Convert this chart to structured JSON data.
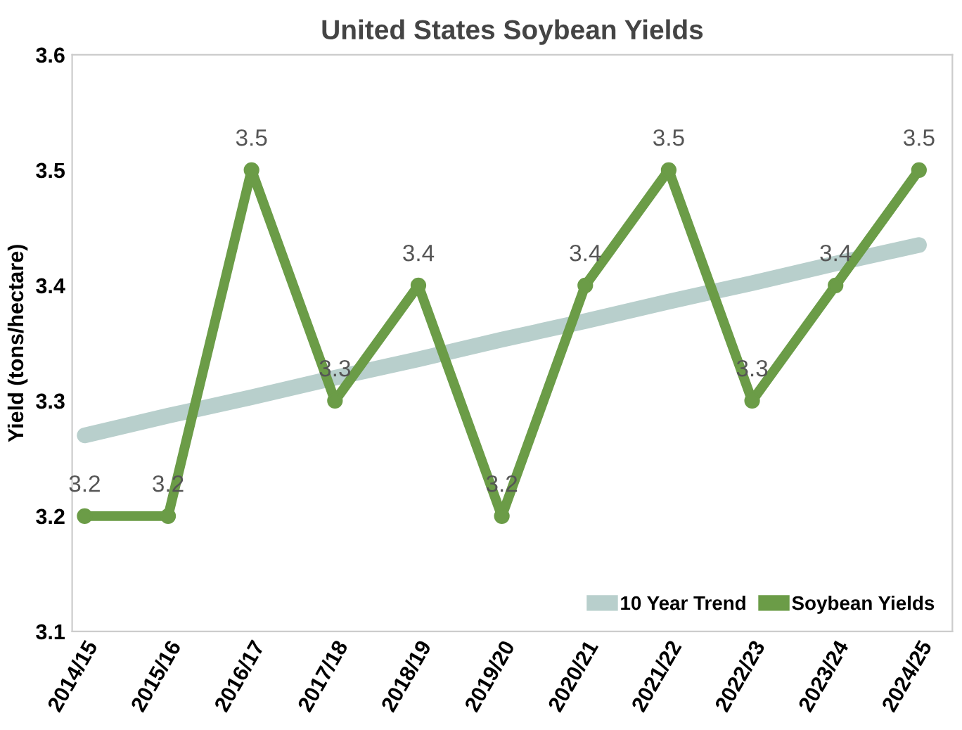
{
  "chart_data": {
    "type": "line",
    "title": "United States Soybean Yields",
    "ylabel": "Yield (tons/hectare)",
    "categories": [
      "2014/15",
      "2015/16",
      "2016/17",
      "2017/18",
      "2018/19",
      "2019/20",
      "2020/21",
      "2021/22",
      "2022/23",
      "2023/24",
      "2024/25"
    ],
    "series": [
      {
        "name": "10 Year Trend",
        "color": "#b8cfcc",
        "values": [
          3.27,
          3.287,
          3.303,
          3.32,
          3.336,
          3.353,
          3.369,
          3.386,
          3.402,
          3.419,
          3.435
        ],
        "marker": "none"
      },
      {
        "name": "Soybean Yields",
        "color": "#6b9c47",
        "values": [
          3.2,
          3.2,
          3.5,
          3.3,
          3.4,
          3.2,
          3.4,
          3.5,
          3.3,
          3.4,
          3.5
        ],
        "value_labels": [
          "3.2",
          "3.2",
          "3.5",
          "3.3",
          "3.4",
          "3.2",
          "3.4",
          "3.5",
          "3.3",
          "3.4",
          "3.5"
        ],
        "marker": "circle"
      }
    ],
    "ylim": [
      3.1,
      3.6
    ],
    "yticks": [
      3.1,
      3.2,
      3.3,
      3.4,
      3.5,
      3.6
    ],
    "grid": false,
    "legend": "bottom right",
    "line_style": "solid"
  }
}
